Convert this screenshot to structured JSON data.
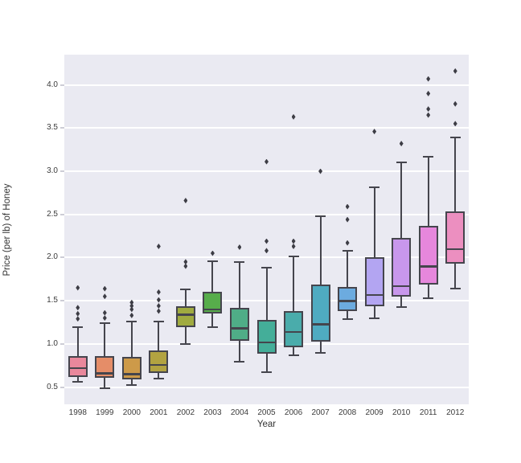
{
  "figure": {
    "plot_bg_color": "#eaeaf2",
    "grid_color": "#ffffff",
    "box_edge_color": "#45454d",
    "outlier_color": "#3d3d45",
    "text_color": "#3b3b3b"
  },
  "chart_data": {
    "type": "boxplot",
    "title": "",
    "xlabel": "Year",
    "ylabel": "Price (per lb) of Honey",
    "ylim": [
      0.3,
      4.35
    ],
    "yticks": [
      0.5,
      1.0,
      1.5,
      2.0,
      2.5,
      3.0,
      3.5,
      4.0
    ],
    "grid": "horizontal-white-on-gray",
    "legend": "none",
    "categories": [
      "1998",
      "1999",
      "2000",
      "2001",
      "2002",
      "2003",
      "2004",
      "2005",
      "2006",
      "2007",
      "2008",
      "2009",
      "2010",
      "2011",
      "2012"
    ],
    "series": [
      {
        "year": "1998",
        "color": "#e9889c",
        "whisker_low": 0.56,
        "q1": 0.62,
        "median": 0.72,
        "q3": 0.86,
        "whisker_high": 1.19,
        "outliers": [
          1.29,
          1.35,
          1.42,
          1.65
        ]
      },
      {
        "year": "1999",
        "color": "#e58d68",
        "whisker_low": 0.49,
        "q1": 0.61,
        "median": 0.66,
        "q3": 0.86,
        "whisker_high": 1.24,
        "outliers": [
          1.3,
          1.36,
          1.55,
          1.64
        ]
      },
      {
        "year": "2000",
        "color": "#cd9a49",
        "whisker_low": 0.52,
        "q1": 0.59,
        "median": 0.65,
        "q3": 0.85,
        "whisker_high": 1.26,
        "outliers": [
          1.33,
          1.4,
          1.44,
          1.48
        ]
      },
      {
        "year": "2001",
        "color": "#b2a341",
        "whisker_low": 0.6,
        "q1": 0.66,
        "median": 0.76,
        "q3": 0.92,
        "whisker_high": 1.26,
        "outliers": [
          1.38,
          1.44,
          1.51,
          1.6,
          2.13
        ]
      },
      {
        "year": "2002",
        "color": "#a0ab40",
        "whisker_low": 1.0,
        "q1": 1.19,
        "median": 1.34,
        "q3": 1.44,
        "whisker_high": 1.63,
        "outliers": [
          1.9,
          1.95,
          2.66
        ]
      },
      {
        "year": "2003",
        "color": "#57ad4b",
        "whisker_low": 1.19,
        "q1": 1.35,
        "median": 1.4,
        "q3": 1.6,
        "whisker_high": 1.96,
        "outliers": [
          2.05
        ]
      },
      {
        "year": "2004",
        "color": "#4fad87",
        "whisker_low": 0.79,
        "q1": 1.04,
        "median": 1.18,
        "q3": 1.42,
        "whisker_high": 1.95,
        "outliers": [
          2.12
        ]
      },
      {
        "year": "2005",
        "color": "#44ae99",
        "whisker_low": 0.67,
        "q1": 0.89,
        "median": 1.02,
        "q3": 1.28,
        "whisker_high": 1.88,
        "outliers": [
          2.08,
          2.19,
          3.11
        ]
      },
      {
        "year": "2006",
        "color": "#4aacab",
        "whisker_low": 0.87,
        "q1": 0.96,
        "median": 1.14,
        "q3": 1.38,
        "whisker_high": 2.01,
        "outliers": [
          2.13,
          2.19,
          3.63
        ]
      },
      {
        "year": "2007",
        "color": "#4fabc1",
        "whisker_low": 0.9,
        "q1": 1.03,
        "median": 1.23,
        "q3": 1.69,
        "whisker_high": 2.48,
        "outliers": [
          3.0
        ]
      },
      {
        "year": "2008",
        "color": "#6cabdf",
        "whisker_low": 1.29,
        "q1": 1.38,
        "median": 1.5,
        "q3": 1.66,
        "whisker_high": 2.08,
        "outliers": [
          2.17,
          2.44,
          2.59
        ]
      },
      {
        "year": "2009",
        "color": "#b3a5f2",
        "whisker_low": 1.3,
        "q1": 1.44,
        "median": 1.57,
        "q3": 2.0,
        "whisker_high": 2.81,
        "outliers": [
          3.46
        ]
      },
      {
        "year": "2010",
        "color": "#c897ec",
        "whisker_low": 1.43,
        "q1": 1.55,
        "median": 1.67,
        "q3": 2.23,
        "whisker_high": 3.1,
        "outliers": [
          3.32
        ]
      },
      {
        "year": "2011",
        "color": "#e687dc",
        "whisker_low": 1.53,
        "q1": 1.69,
        "median": 1.9,
        "q3": 2.37,
        "whisker_high": 3.17,
        "outliers": [
          3.65,
          3.72,
          3.9,
          4.07
        ]
      },
      {
        "year": "2012",
        "color": "#ec8fc0",
        "whisker_low": 1.64,
        "q1": 1.93,
        "median": 2.1,
        "q3": 2.53,
        "whisker_high": 3.39,
        "outliers": [
          3.55,
          3.78,
          4.16
        ]
      }
    ]
  }
}
